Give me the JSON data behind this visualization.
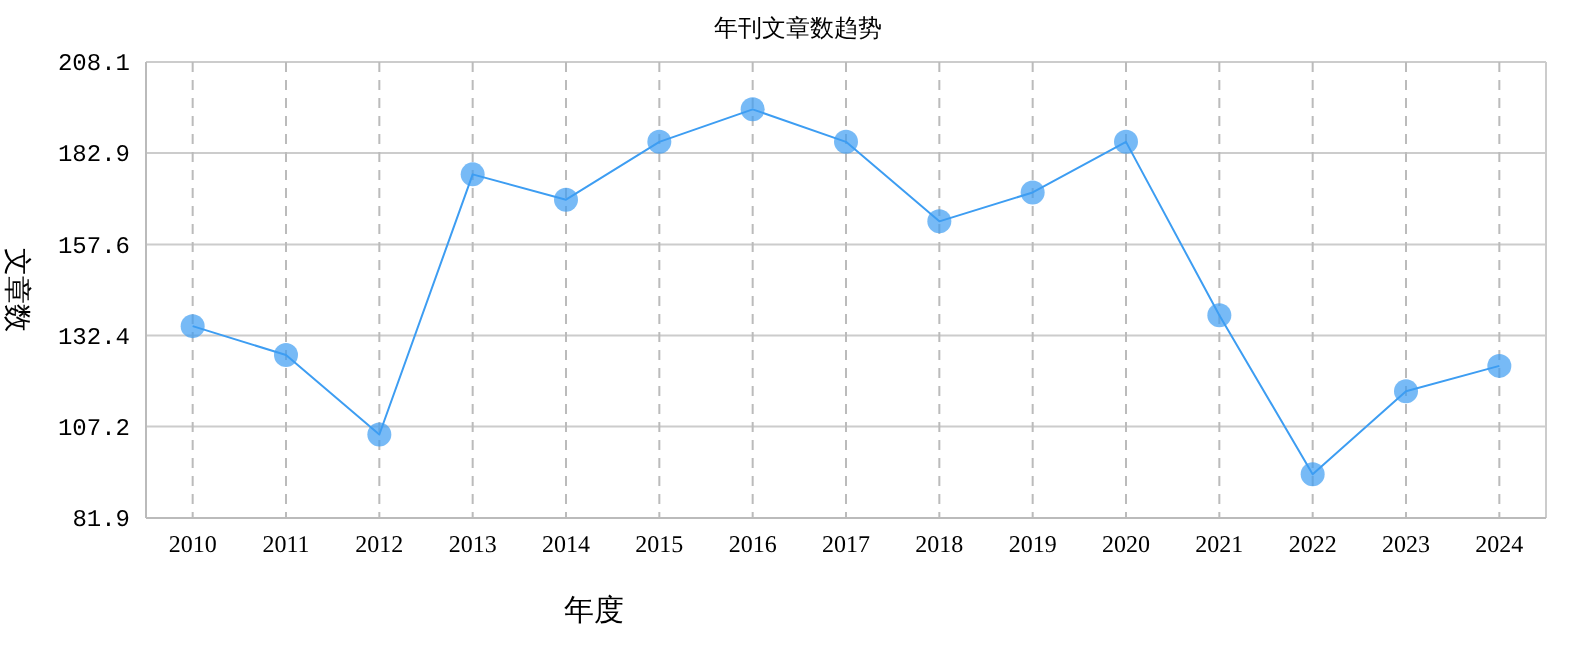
{
  "chart_data": {
    "type": "line",
    "title": "年刊文章数趋势",
    "xlabel": "年度",
    "ylabel": "文章数",
    "categories": [
      "2010",
      "2011",
      "2012",
      "2013",
      "2014",
      "2015",
      "2016",
      "2017",
      "2018",
      "2019",
      "2020",
      "2021",
      "2022",
      "2023",
      "2024"
    ],
    "series": [
      {
        "color": "#3d9df2",
        "values": [
          135,
          127,
          105,
          177,
          170,
          186,
          195,
          186,
          164,
          172,
          186,
          138,
          94,
          117,
          124
        ]
      }
    ],
    "ylim": [
      81.9,
      208.1
    ],
    "yticks": [
      81.9,
      107.2,
      132.4,
      157.6,
      182.9,
      208.1
    ],
    "grid": true,
    "marker": "circle",
    "line_style": "solid"
  }
}
